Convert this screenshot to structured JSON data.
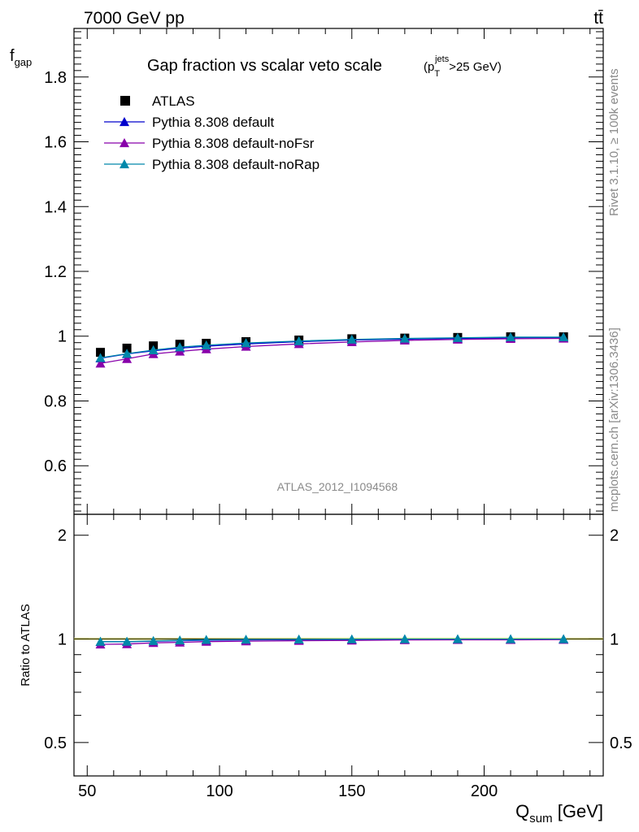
{
  "header": {
    "left": "7000 GeV pp",
    "right": "tt̄"
  },
  "side_labels": {
    "rivet": "Rivet 3.1.10, ≥ 100k events",
    "mcplots": "mcplots.cern.ch [arXiv:1306.3436]"
  },
  "chart_data": {
    "type": "line",
    "title": "Gap fraction vs scalar veto scale",
    "title_suffix": {
      "prefix": "(p",
      "sub": "T",
      "sup": "jets",
      "rest": ">25 GeV)"
    },
    "analysis_label": "ATLAS_2012_I1094568",
    "xlabel": {
      "main": "Q",
      "sub": "sum",
      "unit": " [GeV]"
    },
    "ylabel": {
      "main": "f",
      "sub": "gap"
    },
    "ratio_ylabel": "Ratio to ATLAS",
    "xlim": [
      45,
      245
    ],
    "ylim": [
      0.45,
      1.95
    ],
    "ratio_ylim": [
      0.4,
      2.3
    ],
    "x_ticks": [
      50,
      100,
      150,
      200
    ],
    "y_ticks": [
      0.6,
      0.8,
      1,
      1.2,
      1.4,
      1.6,
      1.8
    ],
    "ratio_ticks": [
      0.5,
      1,
      2
    ],
    "x": [
      55,
      65,
      75,
      85,
      95,
      110,
      130,
      150,
      170,
      190,
      210,
      230
    ],
    "legend_position": "top-left",
    "data": {
      "name": "ATLAS",
      "color": "#000000",
      "marker": "square",
      "values": [
        0.95,
        0.963,
        0.97,
        0.975,
        0.978,
        0.983,
        0.988,
        0.992,
        0.994,
        0.996,
        0.998,
        0.998
      ]
    },
    "series": [
      {
        "name": "Pythia 8.308 default",
        "color": "#0000cc",
        "marker": "triangle",
        "values": [
          0.932,
          0.945,
          0.955,
          0.963,
          0.969,
          0.976,
          0.983,
          0.988,
          0.991,
          0.993,
          0.995,
          0.996
        ],
        "ratio": [
          0.981,
          0.981,
          0.985,
          0.988,
          0.991,
          0.993,
          0.995,
          0.996,
          0.997,
          0.997,
          0.997,
          0.998
        ]
      },
      {
        "name": "Pythia 8.308 default-noFsr",
        "color": "#8800aa",
        "marker": "triangle",
        "values": [
          0.916,
          0.93,
          0.945,
          0.953,
          0.96,
          0.968,
          0.976,
          0.982,
          0.987,
          0.99,
          0.992,
          0.993
        ],
        "ratio": [
          0.964,
          0.966,
          0.974,
          0.977,
          0.982,
          0.985,
          0.988,
          0.99,
          0.993,
          0.994,
          0.994,
          0.995
        ]
      },
      {
        "name": "Pythia 8.308 default-noRap",
        "color": "#0088aa",
        "marker": "triangle",
        "values": [
          0.933,
          0.946,
          0.957,
          0.966,
          0.972,
          0.979,
          0.985,
          0.99,
          0.993,
          0.995,
          0.997,
          0.997
        ],
        "ratio": [
          0.982,
          0.982,
          0.987,
          0.991,
          0.994,
          0.996,
          0.997,
          0.998,
          0.999,
          0.999,
          0.999,
          0.999
        ]
      }
    ]
  }
}
